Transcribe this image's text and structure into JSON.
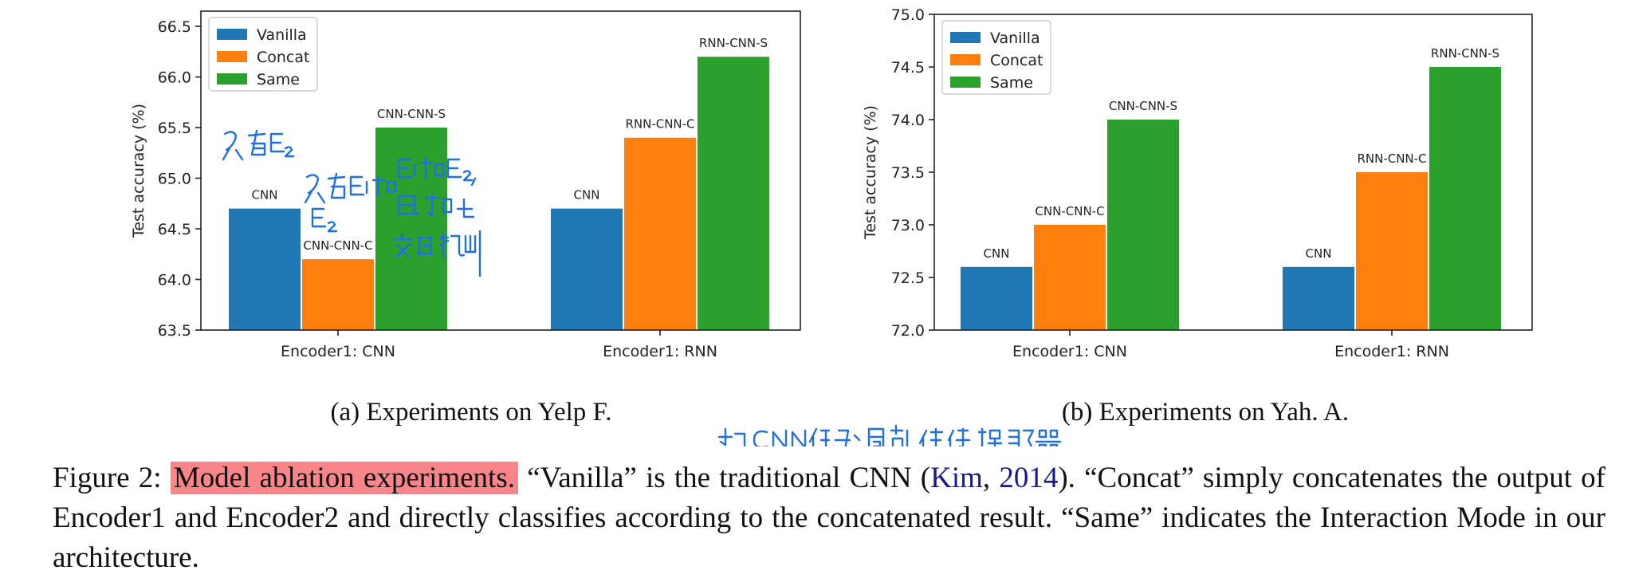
{
  "chart_data": [
    {
      "type": "bar",
      "categories": [
        "Encoder1: CNN",
        "Encoder1: RNN"
      ],
      "series": [
        {
          "name": "Vanilla",
          "values": [
            64.7,
            64.7
          ],
          "labels": [
            "CNN",
            "CNN"
          ]
        },
        {
          "name": "Concat",
          "values": [
            64.2,
            65.4
          ],
          "labels": [
            "CNN-CNN-C",
            "RNN-CNN-C"
          ]
        },
        {
          "name": "Same",
          "values": [
            65.5,
            66.2
          ],
          "labels": [
            "CNN-CNN-S",
            "RNN-CNN-S"
          ]
        }
      ],
      "ylabel": "Test accuracy (%)",
      "ylim": [
        63.5,
        66.65
      ],
      "yticks": [
        "63.5",
        "64.0",
        "64.5",
        "65.0",
        "65.5",
        "66.0",
        "66.5"
      ],
      "legend": "top-left",
      "grid": false,
      "subcaption": "(a) Experiments on Yelp F."
    },
    {
      "type": "bar",
      "categories": [
        "Encoder1: CNN",
        "Encoder1: RNN"
      ],
      "series": [
        {
          "name": "Vanilla",
          "values": [
            72.6,
            72.6
          ],
          "labels": [
            "CNN",
            "CNN"
          ]
        },
        {
          "name": "Concat",
          "values": [
            73.0,
            73.5
          ],
          "labels": [
            "CNN-CNN-C",
            "RNN-CNN-C"
          ]
        },
        {
          "name": "Same",
          "values": [
            74.0,
            74.5
          ],
          "labels": [
            "CNN-CNN-S",
            "RNN-CNN-S"
          ]
        }
      ],
      "ylabel": "Test accuracy (%)",
      "ylim": [
        72.0,
        75.0
      ],
      "yticks": [
        "72.0",
        "72.5",
        "73.0",
        "73.5",
        "74.0",
        "74.5",
        "75.0"
      ],
      "legend": "top-left",
      "grid": false,
      "subcaption": "(b) Experiments on Yah. A."
    }
  ],
  "colors": {
    "Vanilla": "#1f77b4",
    "Concat": "#ff7f0e",
    "Same": "#2ca02c",
    "highlight": "#f7858a",
    "ink": "#1f6fe8"
  },
  "caption": {
    "prefix": "Figure 2: ",
    "highlighted": "Model ablation experiments.",
    "part1": " “Vanilla” is the traditional CNN (",
    "cite_name": "Kim",
    "cite_sep": ", ",
    "cite_year": "2014",
    "part2": "). “Concat” simply concatenates the output of Encoder1 and Encoder2 and directly classifies according to the concatenated result. “Same” indicates the Interaction Mode in our architecture."
  }
}
